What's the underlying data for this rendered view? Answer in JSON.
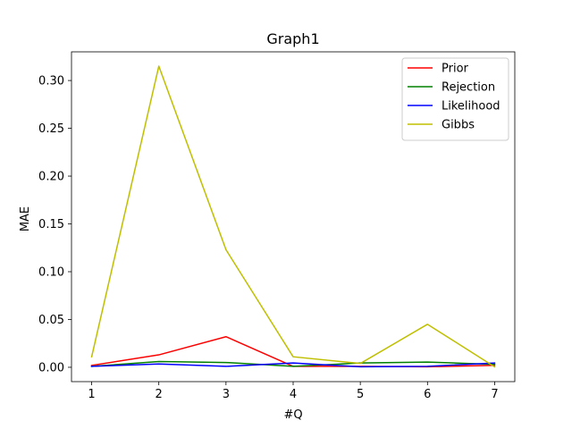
{
  "chart_data": {
    "type": "line",
    "title": "Graph1",
    "xlabel": "#Q",
    "ylabel": "MAE",
    "x": [
      1,
      2,
      3,
      4,
      5,
      6,
      7
    ],
    "xticks": [
      "1",
      "2",
      "3",
      "4",
      "5",
      "6",
      "7"
    ],
    "yticks": [
      "0.00",
      "0.05",
      "0.10",
      "0.15",
      "0.20",
      "0.25",
      "0.30"
    ],
    "xlim": [
      0.7,
      7.3
    ],
    "ylim": [
      -0.015,
      0.33
    ],
    "grid": false,
    "legend_position": "top-right",
    "series": [
      {
        "name": "Prior",
        "color": "#ff0000",
        "values": [
          0.002,
          0.013,
          0.032,
          0.001,
          0.001,
          0.0005,
          0.002
        ]
      },
      {
        "name": "Rejection",
        "color": "#008000",
        "values": [
          0.001,
          0.006,
          0.005,
          0.001,
          0.0045,
          0.0055,
          0.003
        ]
      },
      {
        "name": "Likelihood",
        "color": "#0000ff",
        "values": [
          0.001,
          0.0035,
          0.001,
          0.0045,
          0.0005,
          0.001,
          0.0045
        ]
      },
      {
        "name": "Gibbs",
        "color": "#bfbf00",
        "values": [
          0.011,
          0.315,
          0.123,
          0.011,
          0.004,
          0.045,
          0.0005
        ]
      }
    ]
  }
}
